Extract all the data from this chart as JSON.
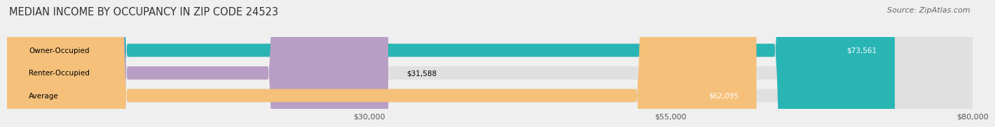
{
  "title": "MEDIAN INCOME BY OCCUPANCY IN ZIP CODE 24523",
  "source": "Source: ZipAtlas.com",
  "categories": [
    "Owner-Occupied",
    "Renter-Occupied",
    "Average"
  ],
  "values": [
    73561,
    31588,
    62095
  ],
  "bar_colors": [
    "#2ab5b5",
    "#b89ec4",
    "#f5c07a"
  ],
  "value_labels": [
    "$73,561",
    "$31,588",
    "$62,095"
  ],
  "xlim": [
    0,
    80000
  ],
  "xticks": [
    30000,
    55000,
    80000
  ],
  "xtick_labels": [
    "$30,000",
    "$55,000",
    "$80,000"
  ],
  "background_color": "#efefef",
  "bar_background_color": "#e0e0e0",
  "title_fontsize": 10.5,
  "source_fontsize": 8
}
